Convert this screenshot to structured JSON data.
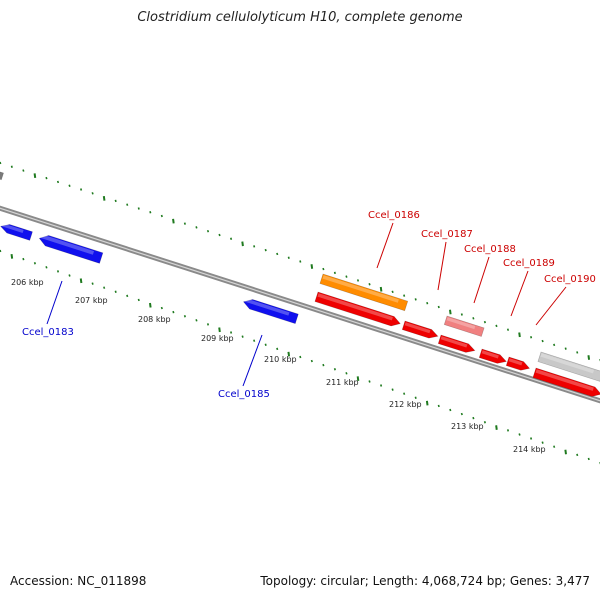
{
  "title": "Clostridium cellulolyticum H10, complete genome",
  "footer": {
    "accession": "Accession: NC_011898",
    "summary": "Topology: circular; Length: 4,068,724 bp; Genes: 3,477"
  },
  "colors": {
    "backbone": "#8a8a8a",
    "tick": "#1f7a1f",
    "forward_label": "#cc0000",
    "reverse_label": "#0000cc"
  },
  "scale_labels": [
    "206 kbp",
    "207 kbp",
    "208 kbp",
    "209 kbp",
    "210 kbp",
    "211 kbp",
    "212 kbp",
    "213 kbp",
    "214 kbp"
  ],
  "genes": [
    {
      "strand": "reverse",
      "color": "#1010ee"
    },
    {
      "strand": "reverse",
      "color": "#1010ee"
    },
    {
      "strand": "reverse",
      "color": "#1010ee"
    },
    {
      "strand": "forward",
      "color": "#ff8c00"
    },
    {
      "strand": "forward",
      "color": "#ee0000"
    },
    {
      "strand": "forward",
      "color": "#ee0000"
    },
    {
      "strand": "forward",
      "color": "#ee0000"
    },
    {
      "strand": "forward",
      "color": "#ee0000"
    },
    {
      "strand": "forward",
      "color": "#ee0000"
    },
    {
      "strand": "forward",
      "color": "#ee0000"
    },
    {
      "strand": "forward",
      "color": "#f08080"
    },
    {
      "strand": "forward",
      "color": "#c8c8c8"
    },
    {
      "strand": "forward",
      "color": "#7a7a7a"
    }
  ],
  "gene_labels": [
    {
      "text": "Ccel_0183",
      "strand": "reverse"
    },
    {
      "text": "Ccel_0185",
      "strand": "reverse"
    },
    {
      "text": "Ccel_0186",
      "strand": "forward"
    },
    {
      "text": "Ccel_0187",
      "strand": "forward"
    },
    {
      "text": "Ccel_0188",
      "strand": "forward"
    },
    {
      "text": "Ccel_0189",
      "strand": "forward"
    },
    {
      "text": "Ccel_0190",
      "strand": "forward"
    }
  ]
}
